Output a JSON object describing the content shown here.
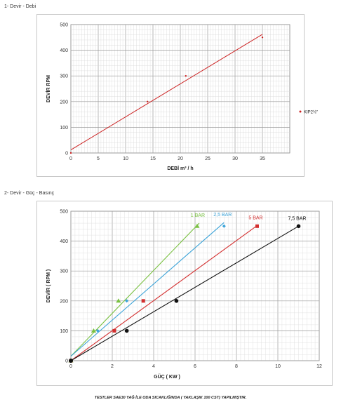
{
  "sections": [
    {
      "title": "1- Devir - Debi"
    },
    {
      "title": "2- Devir - Güç - Basınç"
    }
  ],
  "footnote": "TESTLER SAE30 YAĞ İLE ODA SICAKLIĞINDA ( YAKLAŞIK 100 CST) YAPILMIŞTIR.",
  "chart_data": [
    {
      "type": "line",
      "title": "",
      "xlabel": "DEBİ m³ / h",
      "ylabel": "DEVİR RPM",
      "xlim": [
        0,
        40
      ],
      "ylim": [
        0,
        500
      ],
      "xticks": [
        0,
        5,
        10,
        15,
        20,
        25,
        30,
        35
      ],
      "yticks": [
        0,
        100,
        200,
        300,
        400,
        500
      ],
      "grid": true,
      "legend": "right",
      "series": [
        {
          "name": "KIP2½\"",
          "color": "#cc2222",
          "points": [
            [
              0,
              0
            ],
            [
              14,
              200
            ],
            [
              21,
              300
            ],
            [
              35,
              450
            ]
          ],
          "trendline": [
            [
              0,
              12
            ],
            [
              35,
              462
            ]
          ]
        }
      ]
    },
    {
      "type": "scatter",
      "title": "",
      "xlabel": "GÜÇ ( KW )",
      "ylabel": "DEVİR ( RPM )",
      "xlim": [
        0,
        12
      ],
      "ylim": [
        0,
        500
      ],
      "xticks": [
        0,
        2,
        4,
        6,
        8,
        10,
        12
      ],
      "yticks": [
        0,
        100,
        200,
        300,
        400,
        500
      ],
      "grid": true,
      "series": [
        {
          "name": "1 BAR",
          "color": "#7ac142",
          "marker": "triangle",
          "points": [
            [
              0,
              0
            ],
            [
              1.1,
              100
            ],
            [
              2.3,
              200
            ],
            [
              6.1,
              450
            ]
          ],
          "trendline": [
            [
              0,
              15
            ],
            [
              6.2,
              460
            ]
          ]
        },
        {
          "name": "2,5 BAR",
          "color": "#3ba3d8",
          "marker": "diamond",
          "points": [
            [
              0,
              0
            ],
            [
              1.3,
              100
            ],
            [
              2.7,
              200
            ],
            [
              7.4,
              450
            ]
          ],
          "trendline": [
            [
              0,
              15
            ],
            [
              7.4,
              462
            ]
          ]
        },
        {
          "name": "5 BAR",
          "color": "#d32f2f",
          "marker": "square",
          "points": [
            [
              0,
              0
            ],
            [
              2.1,
              100
            ],
            [
              3.5,
              200
            ],
            [
              9.0,
              450
            ]
          ],
          "trendline": [
            [
              0,
              0
            ],
            [
              9.0,
              452
            ]
          ]
        },
        {
          "name": "7,5 BAR",
          "color": "#111111",
          "marker": "circle",
          "points": [
            [
              0,
              0
            ],
            [
              2.7,
              100
            ],
            [
              5.1,
              200
            ],
            [
              11.0,
              450
            ]
          ],
          "trendline": [
            [
              0,
              0
            ],
            [
              11.0,
              450
            ]
          ]
        }
      ]
    }
  ]
}
